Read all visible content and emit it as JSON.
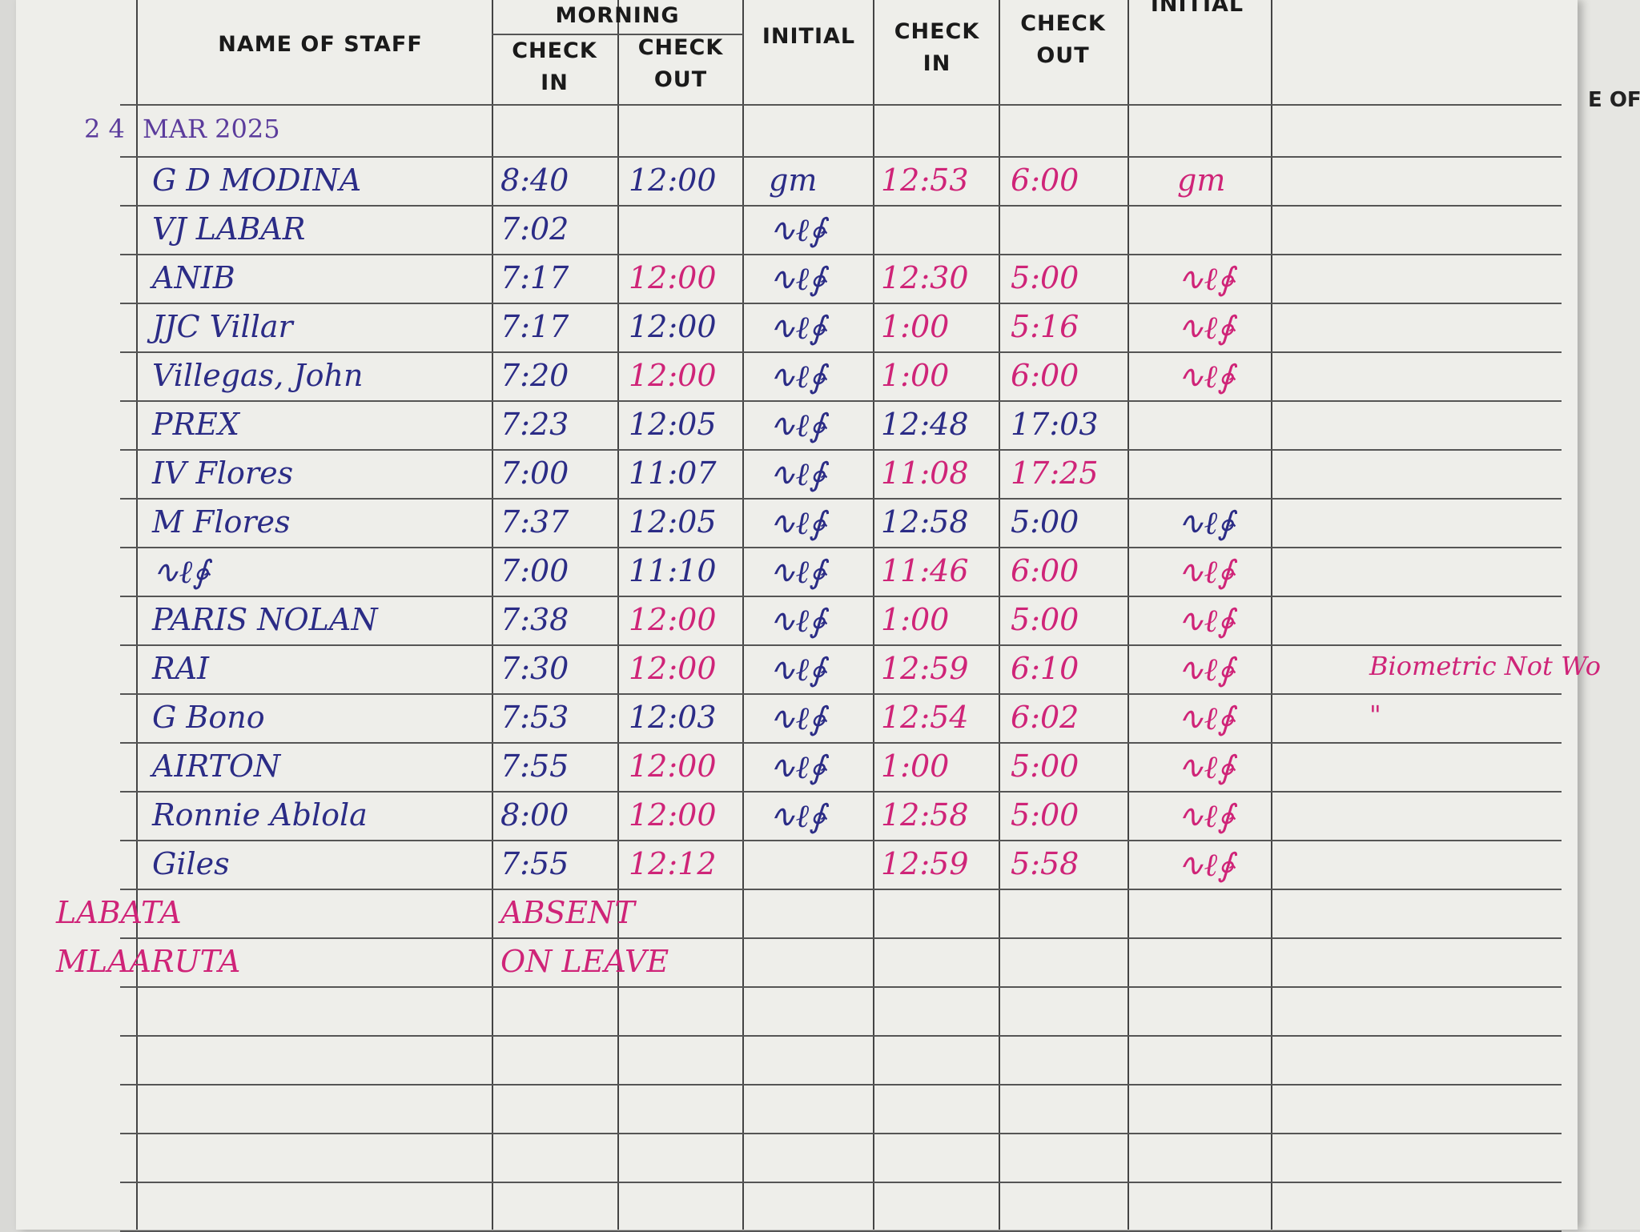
{
  "header": {
    "name_of_staff": "NAME OF STAFF",
    "morning": "MORNING",
    "check_in": "CHECK IN",
    "check_out": "CHECK OUT",
    "initial": "INITIAL",
    "afternoon_check_in": "CHECK IN",
    "afternoon_check_out": "CHECK OUT",
    "afternoon_initial": "INITIAL",
    "next_page_fragment": "E OF"
  },
  "date": {
    "day": "2 4",
    "month_year": "MAR 2025"
  },
  "ink_colors": {
    "blue": "#2b2c86",
    "pink": "#cf2478",
    "purple": "#5b3c9c"
  },
  "rows": [
    {
      "name": "G D MODINA",
      "am_in": "8:40",
      "am_out": "12:00",
      "initial": "gm",
      "pm_in": "12:53",
      "pm_out": "6:00",
      "pm_initial": "gm",
      "remarks": ""
    },
    {
      "name": "VJ LABAR",
      "am_in": "7:02",
      "am_out": "",
      "initial": "sig",
      "pm_in": "",
      "pm_out": "",
      "pm_initial": "",
      "remarks": ""
    },
    {
      "name": "ANIB",
      "am_in": "7:17",
      "am_out": "12:00",
      "initial": "sig",
      "pm_in": "12:30",
      "pm_out": "5:00",
      "pm_initial": "sig",
      "remarks": ""
    },
    {
      "name": "JJC Villar",
      "am_in": "7:17",
      "am_out": "12:00",
      "initial": "sig",
      "pm_in": "1:00",
      "pm_out": "5:16",
      "pm_initial": "sig",
      "remarks": ""
    },
    {
      "name": "Villegas, John",
      "am_in": "7:20",
      "am_out": "12:00",
      "initial": "sig",
      "pm_in": "1:00",
      "pm_out": "6:00",
      "pm_initial": "sig",
      "remarks": ""
    },
    {
      "name": "PREX",
      "am_in": "7:23",
      "am_out": "12:05",
      "initial": "sig",
      "pm_in": "12:48",
      "pm_out": "17:03",
      "pm_initial": "",
      "remarks": ""
    },
    {
      "name": "IV Flores",
      "am_in": "7:00",
      "am_out": "11:07",
      "initial": "sig",
      "pm_in": "11:08",
      "pm_out": "17:25",
      "pm_initial": "",
      "remarks": ""
    },
    {
      "name": "M Flores",
      "am_in": "7:37",
      "am_out": "12:05",
      "initial": "sig",
      "pm_in": "12:58",
      "pm_out": "5:00",
      "pm_initial": "sig",
      "remarks": ""
    },
    {
      "name": "sig",
      "am_in": "7:00",
      "am_out": "11:10",
      "initial": "sig",
      "pm_in": "11:46",
      "pm_out": "6:00",
      "pm_initial": "sig",
      "remarks": ""
    },
    {
      "name": "PARIS NOLAN",
      "am_in": "7:38",
      "am_out": "12:00",
      "initial": "sig",
      "pm_in": "1:00",
      "pm_out": "5:00",
      "pm_initial": "sig",
      "remarks": ""
    },
    {
      "name": "RAI",
      "am_in": "7:30",
      "am_out": "12:00",
      "initial": "sig",
      "pm_in": "12:59",
      "pm_out": "6:10",
      "pm_initial": "sig",
      "remarks": "Biometric Not Wo"
    },
    {
      "name": "G Bono",
      "am_in": "7:53",
      "am_out": "12:03",
      "initial": "sig",
      "pm_in": "12:54",
      "pm_out": "6:02",
      "pm_initial": "sig",
      "remarks": "\""
    },
    {
      "name": "AIRTON",
      "am_in": "7:55",
      "am_out": "12:00",
      "initial": "sig",
      "pm_in": "1:00",
      "pm_out": "5:00",
      "pm_initial": "sig",
      "remarks": ""
    },
    {
      "name": "Ronnie Ablola",
      "am_in": "8:00",
      "am_out": "12:00",
      "initial": "sig",
      "pm_in": "12:58",
      "pm_out": "5:00",
      "pm_initial": "sig",
      "remarks": ""
    },
    {
      "name": "Giles",
      "am_in": "7:55",
      "am_out": "12:12",
      "initial": "",
      "pm_in": "12:59",
      "pm_out": "5:58",
      "pm_initial": "sig",
      "remarks": ""
    },
    {
      "name": "LABATA",
      "am_in": "ABSENT",
      "am_out": "",
      "initial": "",
      "pm_in": "",
      "pm_out": "",
      "pm_initial": "",
      "remarks": ""
    },
    {
      "name": "MLAARUTA",
      "am_in": "ON LEAVE",
      "am_out": "",
      "initial": "",
      "pm_in": "",
      "pm_out": "",
      "pm_initial": "",
      "remarks": ""
    }
  ]
}
